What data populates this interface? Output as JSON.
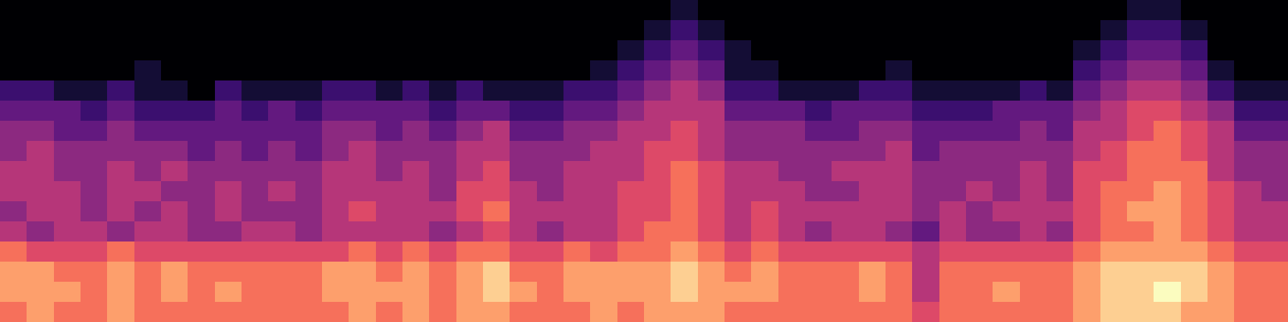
{
  "chart_data": {
    "type": "heatmap",
    "color": "magma",
    "tick_labels": false,
    "cells": [
      [
        0,
        0,
        0,
        0,
        0,
        0,
        0,
        0,
        0,
        0,
        0,
        0,
        0,
        0,
        0,
        0,
        0,
        0,
        0,
        0,
        0,
        0,
        0,
        0,
        0,
        1,
        0,
        0,
        0,
        0,
        0,
        0,
        0,
        0,
        0,
        0,
        0,
        0,
        0,
        0,
        0,
        0,
        1,
        1,
        0,
        0,
        0,
        0
      ],
      [
        0,
        0,
        0,
        0,
        0,
        0,
        0,
        0,
        0,
        0,
        0,
        0,
        0,
        0,
        0,
        0,
        0,
        0,
        0,
        0,
        0,
        0,
        0,
        0,
        1,
        2,
        1,
        0,
        0,
        0,
        0,
        0,
        0,
        0,
        0,
        0,
        0,
        0,
        0,
        0,
        0,
        1,
        2,
        2,
        1,
        0,
        0,
        0
      ],
      [
        0,
        0,
        0,
        0,
        0,
        0,
        0,
        0,
        0,
        0,
        0,
        0,
        0,
        0,
        0,
        0,
        0,
        0,
        0,
        0,
        0,
        0,
        0,
        1,
        2,
        3,
        2,
        1,
        0,
        0,
        0,
        0,
        0,
        0,
        0,
        0,
        0,
        0,
        0,
        0,
        1,
        2,
        3,
        3,
        2,
        0,
        0,
        0
      ],
      [
        0,
        0,
        0,
        0,
        0,
        1,
        0,
        0,
        0,
        0,
        0,
        0,
        0,
        0,
        0,
        0,
        0,
        0,
        0,
        0,
        0,
        0,
        1,
        2,
        3,
        4,
        3,
        1,
        1,
        0,
        0,
        0,
        0,
        1,
        0,
        0,
        0,
        0,
        0,
        0,
        2,
        3,
        4,
        4,
        3,
        1,
        0,
        0
      ],
      [
        2,
        2,
        1,
        1,
        2,
        1,
        1,
        0,
        2,
        1,
        1,
        1,
        2,
        2,
        1,
        2,
        1,
        2,
        1,
        1,
        1,
        2,
        2,
        3,
        4,
        5,
        4,
        2,
        2,
        1,
        1,
        1,
        2,
        2,
        1,
        1,
        1,
        1,
        2,
        1,
        3,
        4,
        5,
        5,
        4,
        2,
        1,
        1
      ],
      [
        3,
        3,
        3,
        2,
        3,
        2,
        2,
        2,
        3,
        2,
        3,
        2,
        3,
        3,
        3,
        3,
        2,
        3,
        3,
        2,
        2,
        3,
        3,
        4,
        5,
        5,
        5,
        3,
        3,
        3,
        2,
        3,
        3,
        3,
        2,
        2,
        2,
        3,
        3,
        3,
        4,
        5,
        6,
        6,
        5,
        4,
        2,
        2
      ],
      [
        4,
        4,
        3,
        3,
        4,
        3,
        3,
        3,
        3,
        3,
        3,
        3,
        4,
        4,
        3,
        4,
        3,
        4,
        5,
        3,
        3,
        4,
        4,
        5,
        5,
        6,
        5,
        4,
        4,
        4,
        3,
        3,
        4,
        4,
        3,
        3,
        3,
        3,
        4,
        3,
        5,
        5,
        6,
        7,
        6,
        5,
        3,
        3
      ],
      [
        4,
        5,
        4,
        4,
        4,
        4,
        4,
        3,
        4,
        3,
        4,
        3,
        4,
        5,
        4,
        4,
        4,
        5,
        5,
        4,
        4,
        4,
        5,
        5,
        6,
        6,
        5,
        4,
        4,
        4,
        4,
        4,
        4,
        5,
        3,
        4,
        4,
        4,
        4,
        4,
        5,
        6,
        7,
        7,
        6,
        5,
        4,
        4
      ],
      [
        5,
        5,
        4,
        4,
        5,
        4,
        5,
        4,
        4,
        4,
        4,
        4,
        5,
        5,
        4,
        5,
        4,
        5,
        6,
        4,
        4,
        5,
        5,
        5,
        6,
        7,
        6,
        5,
        5,
        4,
        4,
        5,
        5,
        5,
        4,
        4,
        4,
        4,
        5,
        4,
        6,
        6,
        7,
        7,
        7,
        5,
        4,
        4
      ],
      [
        5,
        5,
        5,
        4,
        5,
        5,
        4,
        4,
        5,
        4,
        5,
        4,
        5,
        5,
        5,
        5,
        4,
        6,
        6,
        5,
        4,
        5,
        5,
        6,
        6,
        7,
        6,
        5,
        5,
        5,
        4,
        4,
        5,
        5,
        4,
        4,
        5,
        4,
        5,
        4,
        6,
        7,
        7,
        8,
        7,
        6,
        5,
        4
      ],
      [
        4,
        5,
        5,
        4,
        5,
        4,
        5,
        4,
        5,
        4,
        4,
        4,
        5,
        6,
        5,
        5,
        5,
        6,
        7,
        5,
        5,
        5,
        5,
        6,
        6,
        7,
        6,
        5,
        6,
        5,
        5,
        5,
        5,
        5,
        4,
        5,
        4,
        5,
        5,
        5,
        6,
        7,
        8,
        8,
        7,
        6,
        5,
        5
      ],
      [
        5,
        4,
        5,
        5,
        4,
        5,
        5,
        4,
        4,
        5,
        5,
        4,
        5,
        5,
        5,
        5,
        4,
        5,
        6,
        5,
        4,
        5,
        5,
        6,
        7,
        7,
        6,
        5,
        6,
        5,
        4,
        5,
        5,
        4,
        3,
        5,
        4,
        4,
        5,
        4,
        6,
        7,
        7,
        8,
        7,
        6,
        5,
        5
      ],
      [
        7,
        6,
        6,
        6,
        7,
        6,
        6,
        6,
        6,
        6,
        6,
        6,
        6,
        7,
        6,
        7,
        6,
        7,
        7,
        6,
        6,
        7,
        6,
        7,
        7,
        8,
        7,
        6,
        7,
        6,
        6,
        6,
        6,
        6,
        5,
        6,
        6,
        6,
        6,
        6,
        7,
        8,
        8,
        8,
        8,
        7,
        6,
        6
      ],
      [
        8,
        8,
        7,
        7,
        8,
        7,
        8,
        7,
        7,
        7,
        7,
        7,
        8,
        8,
        7,
        8,
        7,
        8,
        9,
        7,
        7,
        8,
        8,
        8,
        8,
        9,
        8,
        7,
        8,
        7,
        7,
        7,
        8,
        7,
        5,
        7,
        7,
        7,
        7,
        7,
        8,
        9,
        9,
        9,
        9,
        8,
        7,
        7
      ],
      [
        8,
        8,
        8,
        7,
        8,
        7,
        8,
        7,
        8,
        7,
        7,
        7,
        8,
        8,
        8,
        8,
        7,
        8,
        9,
        8,
        7,
        8,
        8,
        8,
        8,
        9,
        8,
        8,
        8,
        7,
        7,
        7,
        8,
        7,
        5,
        7,
        7,
        8,
        7,
        7,
        8,
        9,
        9,
        10,
        9,
        8,
        7,
        7
      ],
      [
        7,
        8,
        7,
        7,
        8,
        7,
        7,
        7,
        7,
        7,
        7,
        7,
        7,
        8,
        7,
        8,
        7,
        8,
        8,
        7,
        7,
        7,
        8,
        7,
        8,
        8,
        8,
        7,
        7,
        7,
        7,
        7,
        7,
        7,
        6,
        7,
        7,
        7,
        7,
        7,
        8,
        9,
        9,
        9,
        8,
        8,
        7,
        7
      ]
    ]
  }
}
